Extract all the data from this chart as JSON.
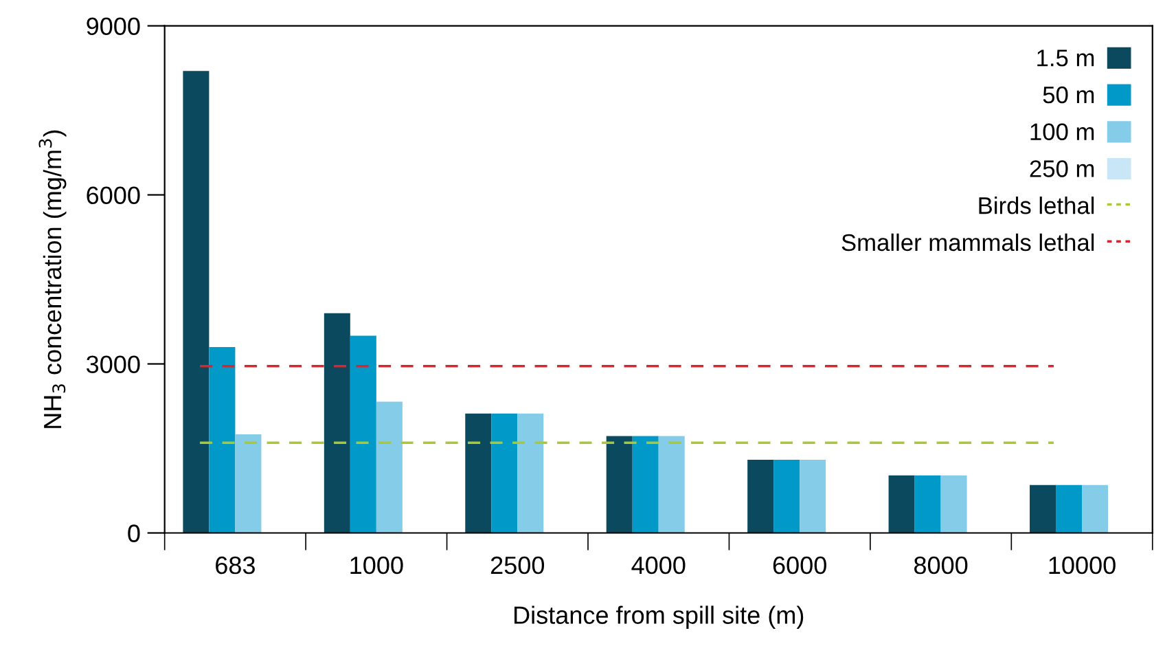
{
  "chart_data": {
    "type": "bar",
    "xlabel": "Distance from spill site (m)",
    "ylabel": "NH$_{3}$ concentration (mg/m$^{3}$)",
    "categories": [
      "683",
      "1000",
      "2500",
      "4000",
      "6000",
      "8000",
      "10000"
    ],
    "series": [
      {
        "name": "1.5 m",
        "color": "#0b4a5e",
        "values": [
          8200,
          3900,
          2120,
          1720,
          1300,
          1020,
          850
        ]
      },
      {
        "name": "50 m",
        "color": "#0099c8",
        "values": [
          3300,
          3500,
          2120,
          1720,
          1300,
          1020,
          850
        ]
      },
      {
        "name": "100 m",
        "color": "#84cce8",
        "values": [
          1750,
          2330,
          2120,
          1720,
          1300,
          1020,
          850
        ]
      },
      {
        "name": "250 m",
        "color": "#c9e6f6",
        "values": [
          null,
          null,
          null,
          null,
          null,
          null,
          null
        ]
      }
    ],
    "ref_lines": [
      {
        "axis": "y",
        "value": 1600,
        "label": "Birds lethal",
        "color": "#a8c83a",
        "line_style": "dashed"
      },
      {
        "axis": "y",
        "value": 2960,
        "label": "Smaller mammals lethal",
        "color": "#d6262e",
        "line_style": "dashed"
      }
    ],
    "ylim": [
      0,
      9000
    ],
    "yticks": [
      0,
      3000,
      6000,
      9000
    ],
    "grid": false,
    "legend": "top right"
  }
}
